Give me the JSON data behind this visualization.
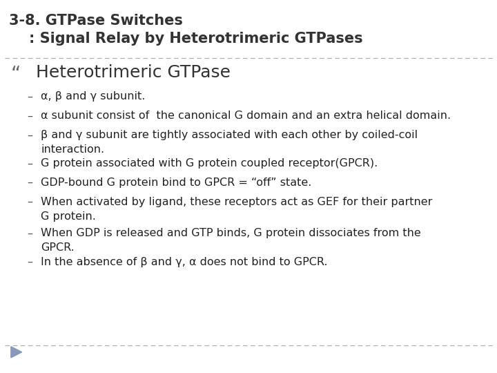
{
  "title_line1": "3-8. GTPase Switches",
  "title_line2": "    : Signal Relay by Heterotrimeric GTPases",
  "subtitle": "Heterotrimeric GTPase",
  "bg_color": "#ffffff",
  "title_color": "#333333",
  "body_color": "#222222",
  "title_fontsize": 15,
  "subtitle_fontsize": 18,
  "body_fontsize": 11.5,
  "dashed_line_color": "#aaaaaa",
  "arrow_color": "#8899bb",
  "bullet_items": [
    [
      "α, β and γ subunit.",
      false
    ],
    [
      "α subunit consist of  the canonical G domain and an extra helical domain.",
      false
    ],
    [
      "β and γ subunit are tightly associated with each other by coiled-coil",
      true
    ],
    [
      "G protein associated with G protein coupled receptor(GPCR).",
      false
    ],
    [
      "GDP-bound G protein bind to GPCR = “off” state.",
      false
    ],
    [
      "When activated by ligand, these receptors act as GEF for their partner",
      true
    ],
    [
      "When GDP is released and GTP binds, G protein dissociates from the",
      true
    ],
    [
      "In the absence of β and γ, α does not bind to GPCR.",
      false
    ]
  ],
  "continuations": [
    "interaction.",
    "G protein.",
    "GPCR."
  ]
}
